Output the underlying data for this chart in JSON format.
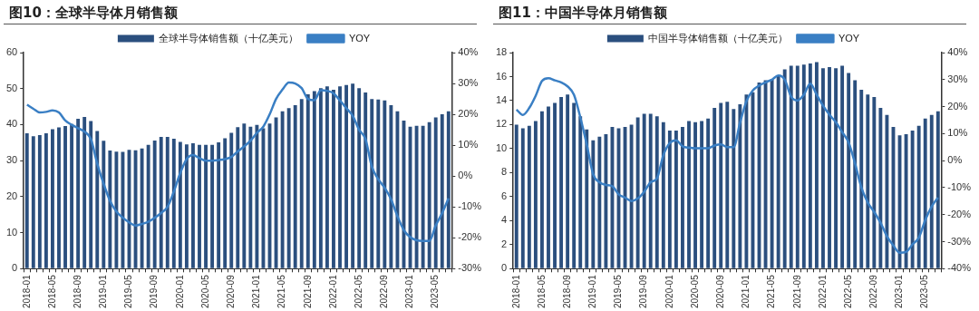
{
  "chart_data": [
    {
      "type": "bar",
      "title": "图10：全球半导体月销售额",
      "categories": [
        "2018-01",
        null,
        null,
        null,
        "2018-05",
        null,
        null,
        null,
        "2018-09",
        null,
        null,
        null,
        "2019-01",
        null,
        null,
        null,
        "2019-05",
        null,
        null,
        null,
        "2019-09",
        null,
        null,
        null,
        "2020-01",
        null,
        null,
        null,
        "2020-05",
        null,
        null,
        null,
        "2020-09",
        null,
        null,
        null,
        "2021-01",
        null,
        null,
        null,
        "2021-05",
        null,
        null,
        null,
        "2021-09",
        null,
        null,
        null,
        "2022-01",
        null,
        null,
        null,
        "2022-05",
        null,
        null,
        null,
        "2022-09",
        null,
        null,
        null,
        "2023-01",
        null,
        null,
        null,
        "2023-05",
        null,
        null
      ],
      "series": [
        {
          "name": "全球半导体销售额（十亿美元）",
          "color": "#2b4f7e",
          "values": [
            37.6,
            36.8,
            37.1,
            37.6,
            38.7,
            39.2,
            39.6,
            40.2,
            41.6,
            42.1,
            41.0,
            38.2,
            35.5,
            32.8,
            32.5,
            32.4,
            33.0,
            32.9,
            33.4,
            34.4,
            35.6,
            36.6,
            36.6,
            36.1,
            35.2,
            34.5,
            34.8,
            34.4,
            34.4,
            34.4,
            35.1,
            36.2,
            37.7,
            39.3,
            40.3,
            39.4,
            39.9,
            39.0,
            40.3,
            42.0,
            43.7,
            44.6,
            45.4,
            47.1,
            48.4,
            49.3,
            50.1,
            50.6,
            49.7,
            50.6,
            51.0,
            51.4,
            50.1,
            48.9,
            47.1,
            47.0,
            46.7,
            45.4,
            43.7,
            41.1,
            39.4,
            39.7,
            39.7,
            40.7,
            42.0,
            42.9,
            43.7
          ]
        },
        {
          "name": "YOY",
          "type": "line",
          "color": "#3a7fc4",
          "axis": "y2",
          "values": [
            23.1,
            21.8,
            20.6,
            20.8,
            21.3,
            20.6,
            18.0,
            16.6,
            15.5,
            14.4,
            12,
            4,
            -2.5,
            -8,
            -11.5,
            -13.5,
            -15,
            -16,
            -15.5,
            -14.8,
            -13.5,
            -12,
            -10,
            -5,
            1,
            5.5,
            6.8,
            5.8,
            5.0,
            5.0,
            5.2,
            5.5,
            6.2,
            8,
            9.6,
            11.5,
            14,
            16,
            20,
            25,
            28,
            30.3,
            30,
            28.5,
            25,
            24.6,
            27.8,
            27.6,
            26.8,
            24.5,
            22,
            19.5,
            15,
            12,
            3,
            -1,
            -3.8,
            -7.5,
            -13,
            -17.5,
            -19.8,
            -20.8,
            -21,
            -21,
            -16,
            -12,
            -7.2
          ]
        }
      ],
      "ylim": [
        0,
        60
      ],
      "yticks": [
        0,
        10,
        20,
        30,
        40,
        50,
        60
      ],
      "y2lim": [
        -30,
        40
      ],
      "y2ticks": [
        {
          "value": -30,
          "label": "-30%"
        },
        {
          "value": -20,
          "label": "-20%"
        },
        {
          "value": -10,
          "label": "-10%"
        },
        {
          "value": 0,
          "label": "0%"
        },
        {
          "value": 10,
          "label": "10%"
        },
        {
          "value": 20,
          "label": "20%"
        },
        {
          "value": 30,
          "label": "30%"
        },
        {
          "value": 40,
          "label": "40%"
        }
      ],
      "legend": "top",
      "marker": "none",
      "grid": false
    },
    {
      "type": "bar",
      "title": "图11：中国半导体月销售额",
      "categories": [
        "2018-01",
        null,
        null,
        null,
        "2018-05",
        null,
        null,
        null,
        "2018-09",
        null,
        null,
        null,
        "2019-01",
        null,
        null,
        null,
        "2019-05",
        null,
        null,
        null,
        "2019-09",
        null,
        null,
        null,
        "2020-01",
        null,
        null,
        null,
        "2020-05",
        null,
        null,
        null,
        "2020-09",
        null,
        null,
        null,
        "2021-01",
        null,
        null,
        null,
        "2021-05",
        null,
        null,
        null,
        "2021-09",
        null,
        null,
        null,
        "2022-01",
        null,
        null,
        null,
        "2022-05",
        null,
        null,
        null,
        "2022-09",
        null,
        null,
        null,
        "2023-01",
        null,
        null,
        null,
        "2023-05",
        null,
        null
      ],
      "series": [
        {
          "name": "中国半导体销售额（十亿美元）",
          "color": "#2b4f7e",
          "values": [
            12.0,
            11.7,
            11.9,
            12.3,
            13.1,
            13.5,
            13.8,
            14.3,
            14.5,
            13.8,
            12.7,
            11.6,
            10.7,
            11.0,
            11.2,
            11.8,
            11.7,
            11.8,
            12.0,
            12.6,
            12.9,
            12.9,
            12.7,
            12.2,
            11.5,
            11.5,
            11.8,
            12.3,
            12.2,
            12.3,
            12.5,
            13.4,
            13.8,
            13.9,
            13.3,
            13.7,
            14.5,
            14.7,
            15.5,
            15.7,
            15.8,
            16.1,
            16.6,
            16.9,
            16.9,
            17.0,
            17.1,
            17.2,
            16.7,
            16.8,
            16.7,
            16.9,
            16.3,
            15.7,
            14.9,
            14.5,
            14.3,
            13.4,
            12.8,
            11.8,
            11.1,
            11.2,
            11.5,
            11.9,
            12.5,
            12.8,
            13.1
          ]
        },
        {
          "name": "YOY",
          "type": "line",
          "color": "#3a7fc4",
          "axis": "y2",
          "values": [
            18.9,
            16.9,
            19.5,
            24,
            29.5,
            30.5,
            29.7,
            29,
            27.5,
            24.4,
            16,
            6,
            -5,
            -8,
            -9,
            -9.5,
            -12.5,
            -13.7,
            -15,
            -14,
            -11.5,
            -8,
            -6.5,
            2,
            6.5,
            7.5,
            5.3,
            4.8,
            4.6,
            4.6,
            4.6,
            5.6,
            6,
            5,
            5,
            14,
            22,
            26,
            27.8,
            29,
            30,
            31.5,
            30,
            23.7,
            22.3,
            24.4,
            28.5,
            24.4,
            20.3,
            17,
            14.2,
            10.5,
            6.7,
            -1,
            -10,
            -15.5,
            -19,
            -23,
            -28,
            -31.4,
            -34.1,
            -33.8,
            -31,
            -28.5,
            -22,
            -17,
            -13.7
          ]
        }
      ],
      "ylim": [
        0,
        18
      ],
      "yticks": [
        0,
        2,
        4,
        6,
        8,
        10,
        12,
        14,
        16,
        18
      ],
      "y2lim": [
        -40,
        40
      ],
      "y2ticks": [
        {
          "value": -40,
          "label": "-40%"
        },
        {
          "value": -30,
          "label": "-30%"
        },
        {
          "value": -20,
          "label": "-20%"
        },
        {
          "value": -10,
          "label": "-10%"
        },
        {
          "value": 0,
          "label": "0%"
        },
        {
          "value": 10,
          "label": "10%"
        },
        {
          "value": 20,
          "label": "20%"
        },
        {
          "value": 30,
          "label": "30%"
        },
        {
          "value": 40,
          "label": "40%"
        }
      ],
      "legend": "top",
      "marker": "none",
      "grid": false
    }
  ]
}
